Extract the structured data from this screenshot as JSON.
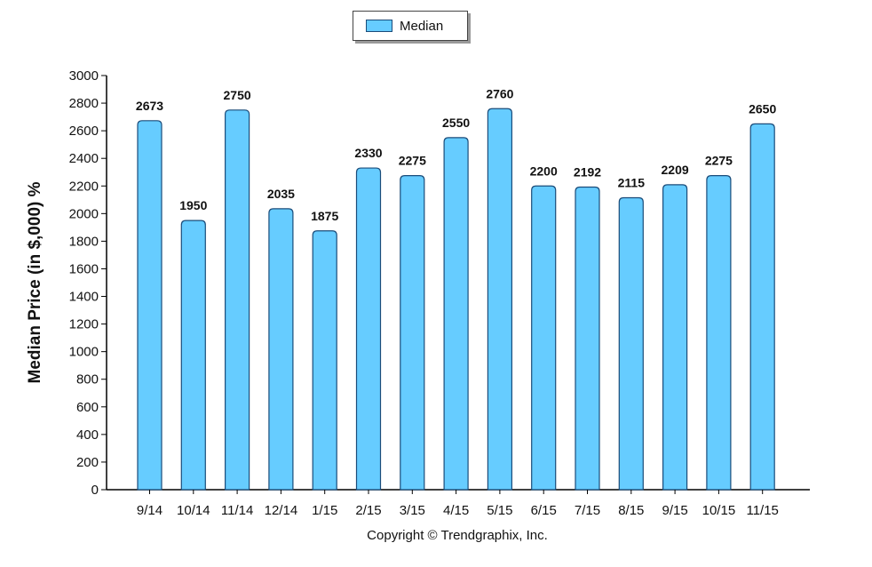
{
  "legend": {
    "label": "Median"
  },
  "copyright": "Copyright © Trendgraphix, Inc.",
  "chart_data": {
    "type": "bar",
    "categories": [
      "9/14",
      "10/14",
      "11/14",
      "12/14",
      "1/15",
      "2/15",
      "3/15",
      "4/15",
      "5/15",
      "6/15",
      "7/15",
      "8/15",
      "9/15",
      "10/15",
      "11/15"
    ],
    "series": [
      {
        "name": "Median",
        "values": [
          2673,
          1950,
          2750,
          2035,
          1875,
          2330,
          2275,
          2550,
          2760,
          2200,
          2192,
          2115,
          2209,
          2275,
          2650
        ]
      }
    ],
    "data_labels": [
      "2673",
      "1950",
      "2750",
      "2035",
      "1875",
      "2330",
      "2275",
      "2550",
      "2760",
      "2200",
      "2192",
      "2115",
      "2209",
      "2275",
      "2650"
    ],
    "ylabel": "Median Price (in $,000) %",
    "xlabel": "",
    "ylim": [
      0,
      3000
    ],
    "yticks": [
      0,
      200,
      400,
      600,
      800,
      1000,
      1200,
      1400,
      1600,
      1800,
      2000,
      2200,
      2400,
      2600,
      2800,
      3000
    ],
    "grid": false,
    "legend_position": "top-center",
    "colors": {
      "bar_fill": "#66ccff",
      "bar_stroke": "#1a4c7a",
      "axis": "#000000"
    }
  }
}
